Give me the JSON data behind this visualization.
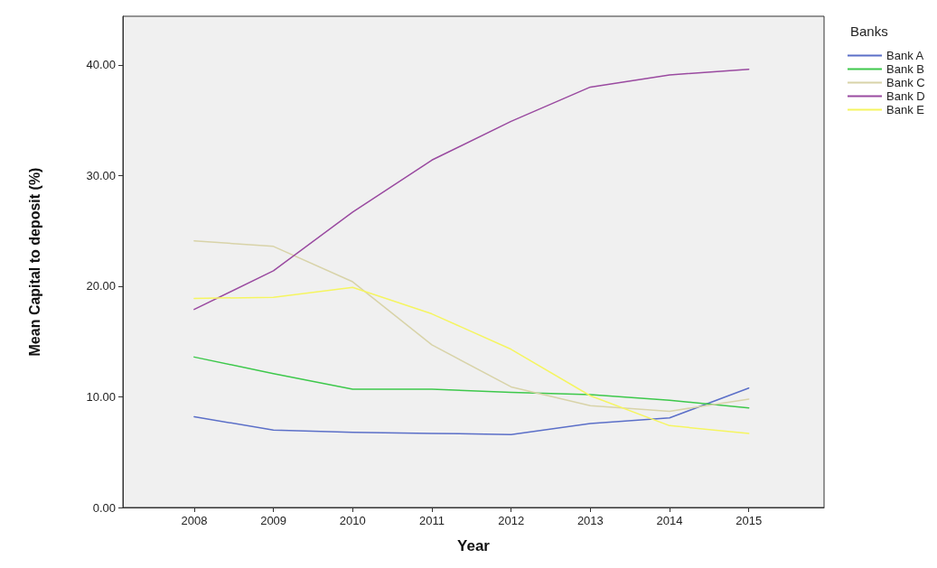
{
  "chart_data": {
    "type": "line",
    "xlabel": "Year",
    "ylabel": "Mean Capital to deposit (%)",
    "legend_title": "Banks",
    "legend": "top right",
    "grid": false,
    "marker": "none",
    "line_style": "solid",
    "x": [
      2008,
      2009,
      2010,
      2011,
      2012,
      2013,
      2014,
      2015
    ],
    "xlim": [
      2007.1,
      2015.95
    ],
    "xticks": [
      2008,
      2009,
      2010,
      2011,
      2012,
      2013,
      2014,
      2015
    ],
    "ylim": [
      0,
      44.4
    ],
    "yticks": [
      {
        "value": 0,
        "label": "0.00"
      },
      {
        "value": 10,
        "label": "10.00"
      },
      {
        "value": 20,
        "label": "20.00"
      },
      {
        "value": 30,
        "label": "30.00"
      },
      {
        "value": 40,
        "label": "40.00"
      }
    ],
    "series": [
      {
        "name": "Bank A",
        "color": "#5b6fc8",
        "values": [
          8.2,
          7.0,
          6.8,
          6.7,
          6.6,
          7.6,
          8.1,
          10.8
        ]
      },
      {
        "name": "Bank B",
        "color": "#3dc84b",
        "values": [
          13.6,
          12.1,
          10.7,
          10.7,
          10.4,
          10.2,
          9.7,
          9.0
        ]
      },
      {
        "name": "Bank C",
        "color": "#d8d3a8",
        "values": [
          24.1,
          23.6,
          20.4,
          14.7,
          10.9,
          9.2,
          8.7,
          9.8
        ]
      },
      {
        "name": "Bank D",
        "color": "#9a4aa0",
        "values": [
          17.9,
          21.4,
          26.7,
          31.4,
          34.9,
          38.0,
          39.1,
          39.6
        ]
      },
      {
        "name": "Bank E",
        "color": "#f5f560",
        "values": [
          18.9,
          19.0,
          19.9,
          17.5,
          14.3,
          10.1,
          7.4,
          6.7
        ]
      }
    ]
  }
}
